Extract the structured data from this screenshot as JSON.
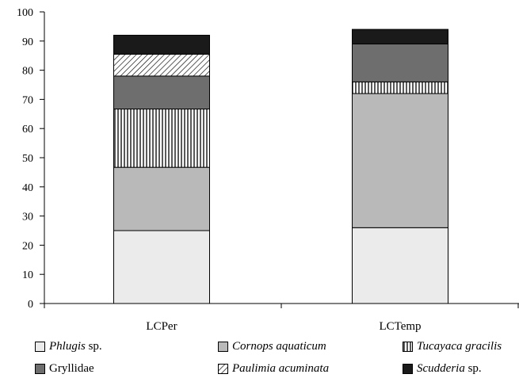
{
  "chart_data": {
    "type": "bar",
    "stacked": true,
    "categories": [
      "LCPer",
      "LCTemp"
    ],
    "ylim": [
      0,
      100
    ],
    "yticks": [
      0,
      10,
      20,
      30,
      40,
      50,
      60,
      70,
      80,
      90,
      100
    ],
    "grid": false,
    "legend_position": "bottom",
    "title": "",
    "xlabel": "",
    "ylabel": "",
    "series": [
      {
        "name_italic": "Phlugis",
        "name_rest": " sp.",
        "color": "#ebebeb",
        "pattern": "solid",
        "values": [
          25,
          26
        ]
      },
      {
        "name_italic": "Cornops aquaticum",
        "name_rest": "",
        "color": "#b9b9b9",
        "pattern": "solid",
        "values": [
          21.7,
          46
        ]
      },
      {
        "name_italic": "Tucayaca gracilis",
        "name_rest": "",
        "color": "#ffffff",
        "pattern": "vertical-lines",
        "values": [
          20,
          4
        ]
      },
      {
        "name_italic": "",
        "name_rest": "Gryllidae",
        "color": "#6e6e6e",
        "pattern": "solid",
        "values": [
          11.3,
          13
        ]
      },
      {
        "name_italic": "Paulimia acuminata",
        "name_rest": "",
        "color": "#ffffff",
        "pattern": "diagonal-lines",
        "values": [
          7.5,
          0
        ]
      },
      {
        "name_italic": "Scudderia",
        "name_rest": " sp.",
        "color": "#1a1a1a",
        "pattern": "solid",
        "values": [
          6.5,
          5
        ]
      }
    ]
  }
}
